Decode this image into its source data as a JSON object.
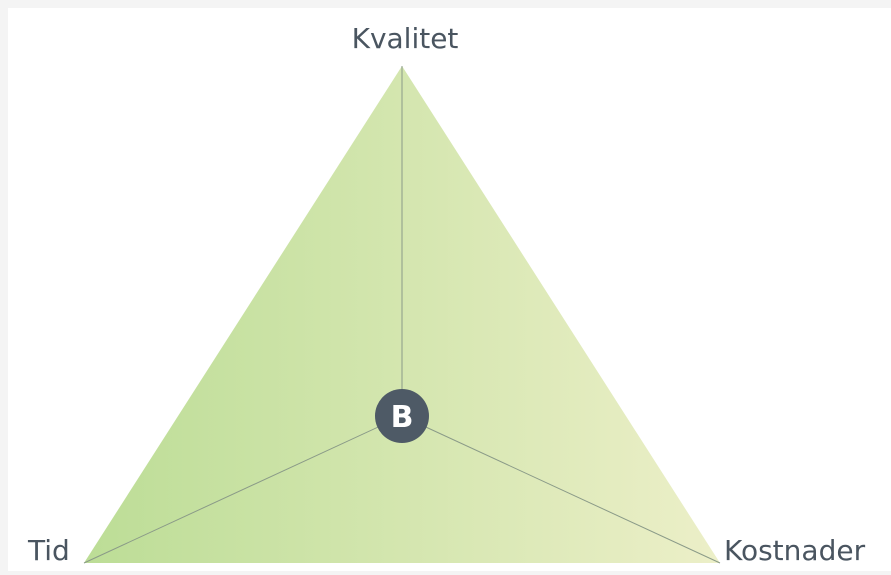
{
  "nodes": [
    {
      "label": "Kvalitet"
    },
    {
      "label": "Tid"
    },
    {
      "label": "Kostnader"
    }
  ],
  "center": {
    "label": "B"
  }
}
